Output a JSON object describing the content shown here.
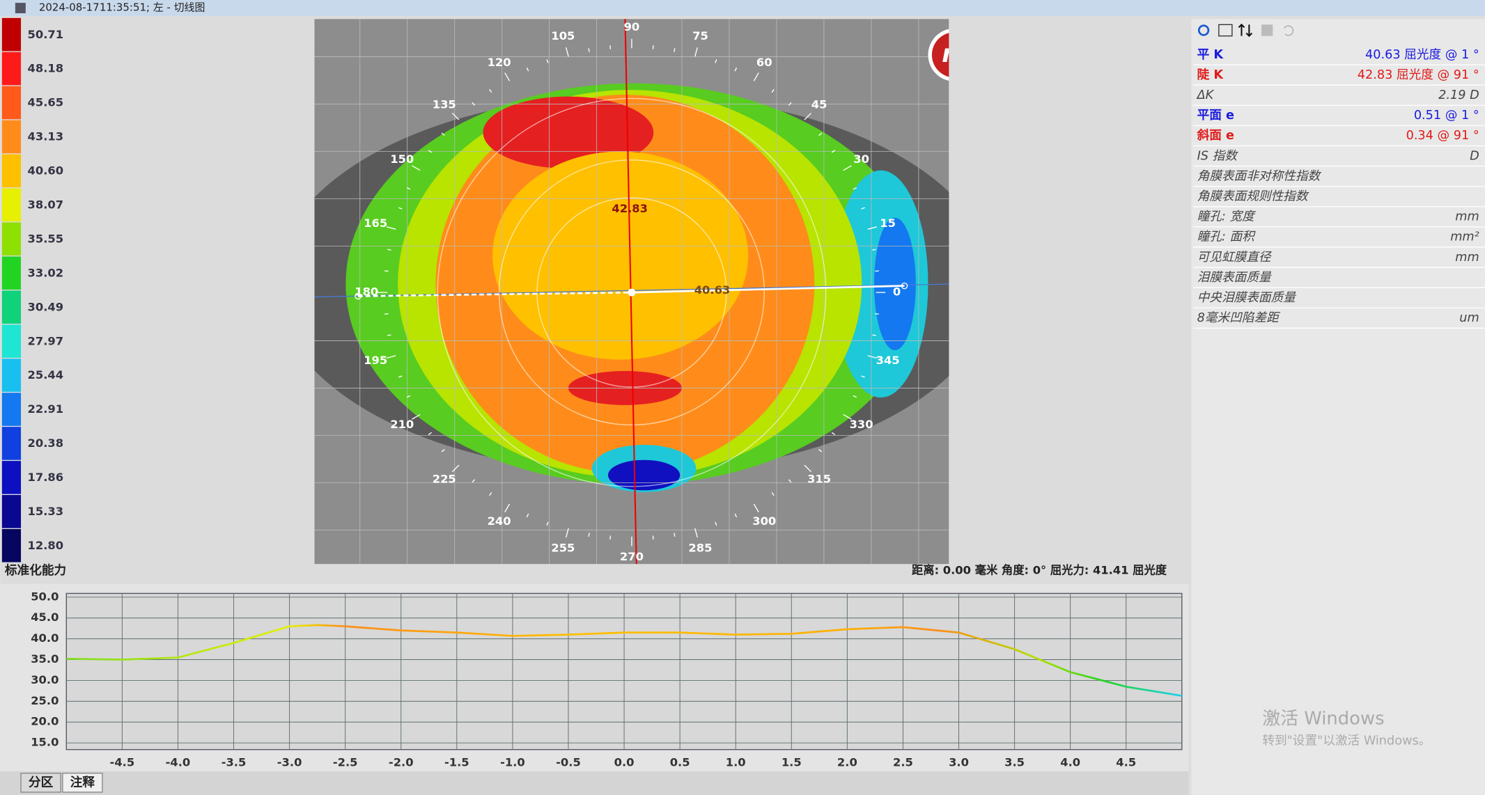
{
  "title_bar": {
    "date": "2024-08-17",
    "caption": "11:35:51; 左 - 切线图"
  },
  "scale": {
    "title": "标准化能力",
    "labels": [
      "50.71",
      "48.18",
      "45.65",
      "43.13",
      "40.60",
      "38.07",
      "35.55",
      "33.02",
      "30.49",
      "27.97",
      "25.44",
      "22.91",
      "20.38",
      "17.86",
      "15.33",
      "12.80"
    ],
    "colors": [
      "#c00000",
      "#ff1a1a",
      "#ff5a1a",
      "#ff8c1a",
      "#ffc000",
      "#e6f000",
      "#8ee000",
      "#22d422",
      "#10d27a",
      "#1ee6d2",
      "#18c0f0",
      "#1478f0",
      "#1040e0",
      "#0c10c0",
      "#0a0890",
      "#060660"
    ]
  },
  "map": {
    "logo": "medmont",
    "angles": [
      0,
      15,
      30,
      45,
      60,
      75,
      90,
      105,
      120,
      135,
      150,
      165,
      180,
      195,
      210,
      225,
      240,
      255,
      270,
      285,
      300,
      315,
      330,
      345
    ],
    "steep_reading": "42.83",
    "flat_reading": "40.63",
    "status": "距离: 0.00 毫米  角度: 0°  屈光力: 41.41 屈光度"
  },
  "panel": {
    "rows": [
      {
        "label": "平 K",
        "value": "40.63 屈光度 @   1 °",
        "color": "#1a1ae0"
      },
      {
        "label": "陡 K",
        "value": "42.83 屈光度 @  91 °",
        "color": "#e01a1a"
      },
      {
        "label": "ΔK",
        "value": "2.19 D"
      },
      {
        "label": "平面 e",
        "value": "0.51 @   1 °",
        "color": "#1a1ae0"
      },
      {
        "label": "斜面 e",
        "value": "0.34 @  91 °",
        "color": "#e01a1a"
      },
      {
        "label": "IS 指数",
        "value": "D"
      },
      {
        "label": "角膜表面非对称性指数"
      },
      {
        "label": "角膜表面规则性指数"
      },
      {
        "label": "瞳孔: 宽度",
        "value": "mm"
      },
      {
        "label": "瞳孔: 面积",
        "value": "mm²"
      },
      {
        "label": "可见虹膜直径",
        "value": "mm"
      },
      {
        "label": "泪膜表面质量"
      },
      {
        "label": "中央泪膜表面质量"
      },
      {
        "label": "8毫米凹陷差距",
        "value": "um"
      }
    ]
  },
  "tabs": [
    "分区",
    "注释"
  ],
  "watermark": {
    "line1": "激活 Windows",
    "line2": "转到\"设置\"以激活 Windows。"
  },
  "chart_data": {
    "type": "line",
    "x": [
      -5.0,
      -4.5,
      -4.0,
      -3.5,
      -3.0,
      -2.75,
      -2.5,
      -2.0,
      -1.5,
      -1.0,
      -0.5,
      0.0,
      0.5,
      1.0,
      1.5,
      2.0,
      2.5,
      3.0,
      3.5,
      4.0,
      4.5,
      5.0
    ],
    "series": [
      {
        "values": [
          35.2,
          35.0,
          35.5,
          39.0,
          43.0,
          43.3,
          43.0,
          42.0,
          41.5,
          40.7,
          41.0,
          41.5,
          41.5,
          41.0,
          41.2,
          42.3,
          42.8,
          41.5,
          37.5,
          32.0,
          28.5,
          26.3
        ]
      }
    ],
    "xlim": [
      -5.0,
      5.0
    ],
    "xticks": [
      -4.5,
      {
        "value": -4.0,
        "label": "-4.0"
      },
      -3.5,
      {
        "value": -3.0,
        "label": "-3.0"
      },
      -2.5,
      {
        "value": -2.0,
        "label": "-2.0"
      },
      -1.5,
      {
        "value": -1.0,
        "label": "-1.0"
      },
      -0.5,
      {
        "value": 0.0,
        "label": "0.0"
      },
      0.5,
      {
        "value": 1.0,
        "label": "1.0"
      },
      1.5,
      {
        "value": 2.0,
        "label": "2.0"
      },
      2.5,
      {
        "value": 3.0,
        "label": "3.0"
      },
      3.5,
      {
        "value": 4.0,
        "label": "4.0"
      },
      4.5
    ],
    "ylim": [
      13.4,
      50.9
    ],
    "yticks": [
      {
        "value": 15,
        "label": "15.0"
      },
      {
        "value": 20,
        "label": "20.0"
      },
      {
        "value": 25,
        "label": "25.0"
      },
      {
        "value": 30,
        "label": "30.0"
      },
      {
        "value": 35,
        "label": "35.0"
      },
      {
        "value": 40,
        "label": "40.0"
      },
      {
        "value": 45,
        "label": "45.0"
      },
      {
        "value": 50,
        "label": "50.0"
      }
    ],
    "grid": true
  }
}
